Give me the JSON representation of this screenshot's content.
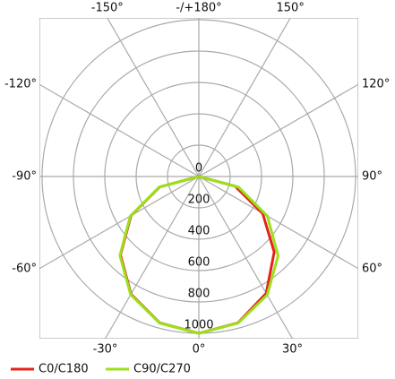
{
  "chart_data": {
    "type": "polar",
    "angle_zero": "bottom",
    "angle_direction": "clockwise-negative-left",
    "rlim": [
      0,
      1000
    ],
    "rticks": [
      0,
      200,
      400,
      600,
      800,
      1000
    ],
    "angleticks": [
      {
        "value": -150,
        "label": "-150°"
      },
      {
        "value": 180,
        "label": "-/+180°"
      },
      {
        "value": 150,
        "label": "150°"
      },
      {
        "value": -120,
        "label": "-120°"
      },
      {
        "value": 120,
        "label": "120°"
      },
      {
        "value": -90,
        "label": "-90°"
      },
      {
        "value": 90,
        "label": "90°"
      },
      {
        "value": -60,
        "label": "-60°"
      },
      {
        "value": 60,
        "label": "60°"
      },
      {
        "value": -30,
        "label": "-30°"
      },
      {
        "value": 0,
        "label": "0°"
      },
      {
        "value": 30,
        "label": "30°"
      }
    ],
    "grid": true,
    "theta": [
      -90,
      -75,
      -60,
      -45,
      -30,
      -15,
      0,
      15,
      30,
      45,
      60,
      75,
      90
    ],
    "series": [
      {
        "name": "C0/C180",
        "color": "#e8201c",
        "values": [
          0,
          259,
          500,
          707,
          866,
          966,
          1000,
          966,
          860,
          680,
          470,
          240,
          0
        ]
      },
      {
        "name": "C90/C270",
        "color": "#9be01c",
        "values": [
          0,
          262,
          505,
          712,
          870,
          968,
          1000,
          968,
          872,
          715,
          505,
          262,
          0
        ]
      }
    ]
  }
}
